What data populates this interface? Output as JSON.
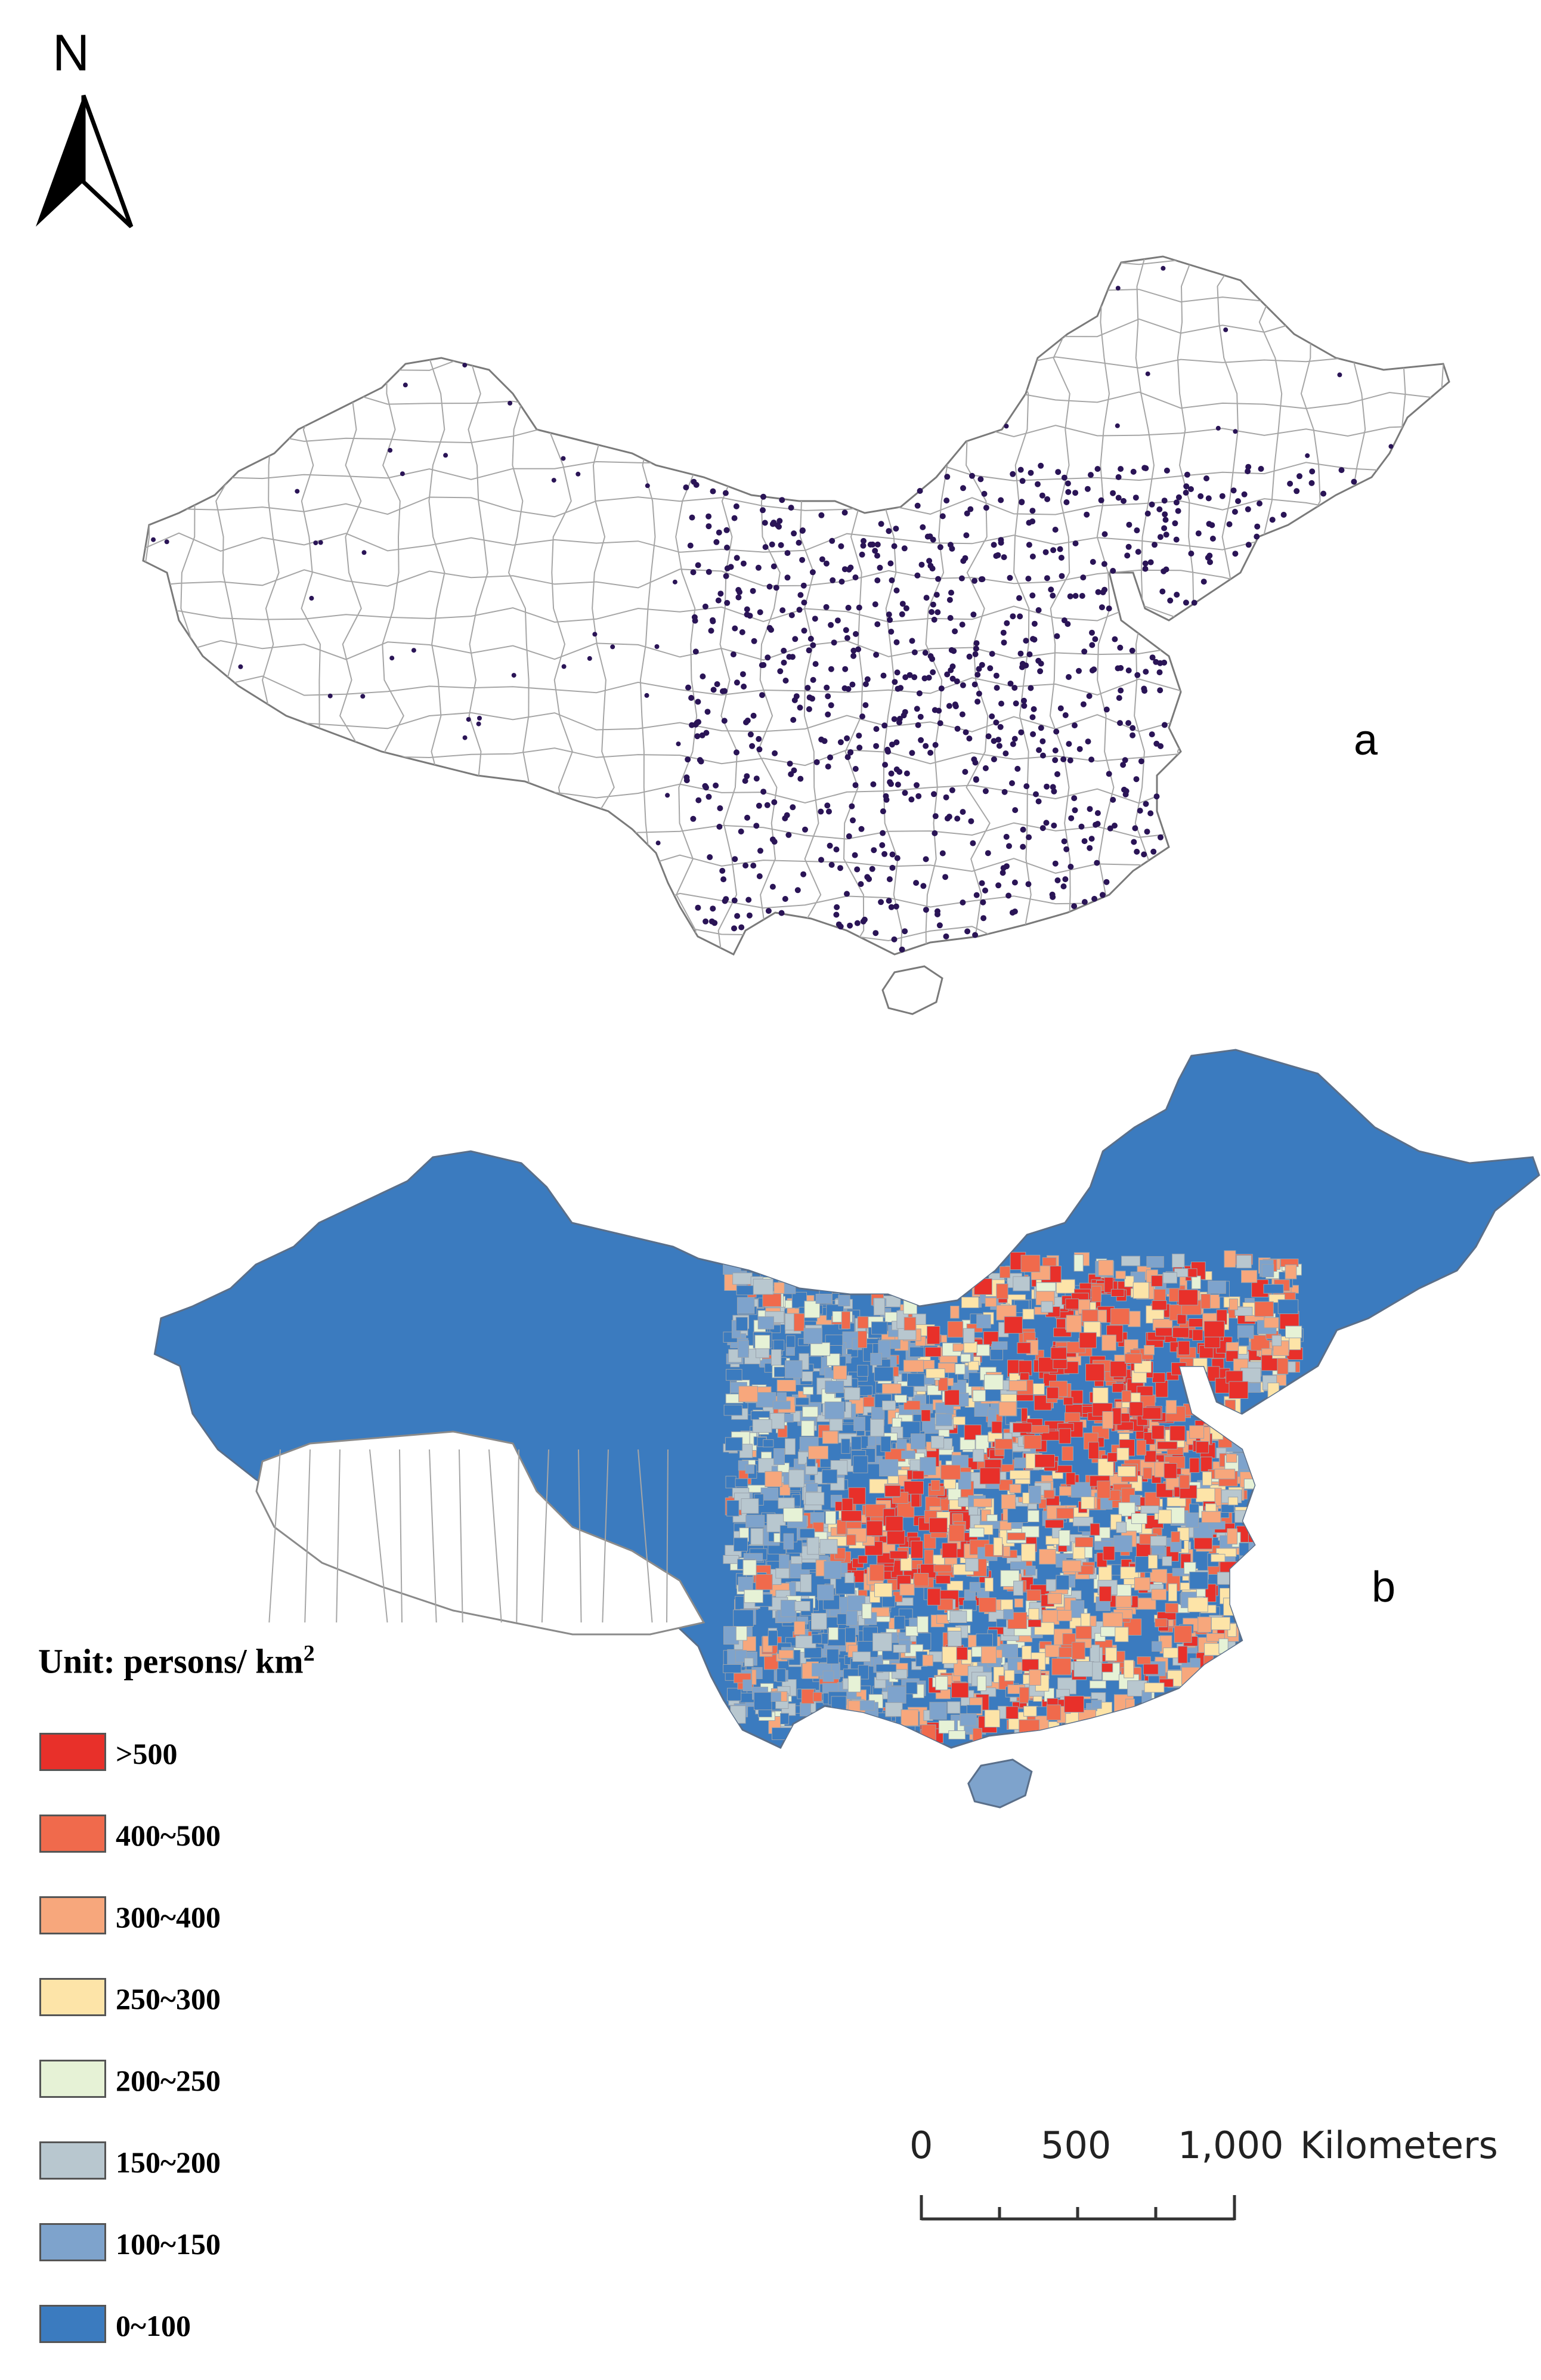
{
  "north_arrow": {
    "label": "N",
    "icon": "north-arrow-icon"
  },
  "panels": [
    {
      "id": "a",
      "label": "a",
      "description_kind": "county-boundaries-with-centroid-points",
      "point_color": "#2a1456",
      "boundary_color": "#8a8a8a"
    },
    {
      "id": "b",
      "label": "b",
      "description_kind": "population-density-choropleth"
    }
  ],
  "legend": {
    "title_main": "Unit: persons/ km",
    "title_sup": "2",
    "classes": [
      {
        "label": ">500",
        "color": "#e8302a"
      },
      {
        "label": "400~500",
        "color": "#f06a4c"
      },
      {
        "label": "300~400",
        "color": "#f7a77c"
      },
      {
        "label": "250~300",
        "color": "#fde4a8"
      },
      {
        "label": "200~250",
        "color": "#e6f2d6"
      },
      {
        "label": "150~200",
        "color": "#b8c7cf"
      },
      {
        "label": "100~150",
        "color": "#7ea3cc"
      },
      {
        "label": "0~100",
        "color": "#3b7bbf"
      }
    ]
  },
  "scale_bar": {
    "ticks": [
      "0",
      "500",
      "1,000"
    ],
    "unit": "Kilometers"
  }
}
